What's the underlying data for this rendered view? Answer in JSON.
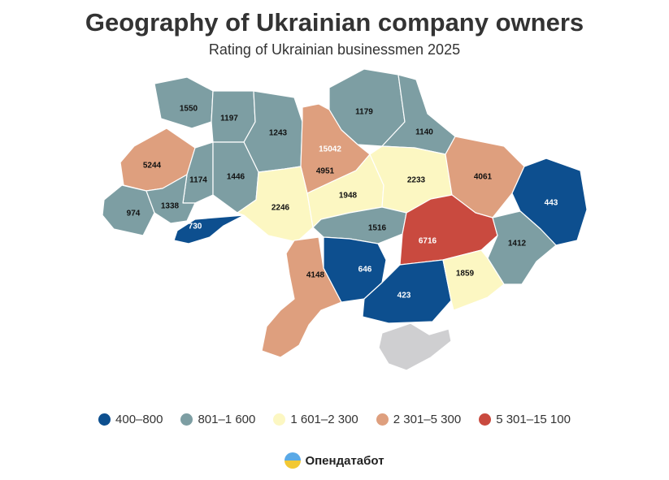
{
  "title": "Geography of Ukrainian company owners",
  "subtitle": "Rating of Ukrainian businessmen 2025",
  "chart_data": {
    "type": "choropleth",
    "regions": [
      {
        "name": "Volyn",
        "value": 1550,
        "color": "#7d9ea3"
      },
      {
        "name": "Rivne",
        "value": 1197,
        "color": "#7d9ea3"
      },
      {
        "name": "Zhytomyr",
        "value": 1243,
        "color": "#7d9ea3"
      },
      {
        "name": "Chernihiv",
        "value": 1179,
        "color": "#7d9ea3"
      },
      {
        "name": "Sumy",
        "value": 1140,
        "color": "#7d9ea3"
      },
      {
        "name": "Lviv",
        "value": 5244,
        "color": "#de9f7e"
      },
      {
        "name": "Ternopil",
        "value": 1174,
        "color": "#7d9ea3"
      },
      {
        "name": "Khmelnytskyi",
        "value": 1446,
        "color": "#7d9ea3"
      },
      {
        "name": "Kyiv city",
        "value": 15042,
        "color": "#c94a3f"
      },
      {
        "name": "Kyiv oblast",
        "value": 4951,
        "color": "#de9f7e"
      },
      {
        "name": "Zakarpattia",
        "value": 974,
        "color": "#7d9ea3"
      },
      {
        "name": "Ivano-Frankivsk",
        "value": 1338,
        "color": "#7d9ea3"
      },
      {
        "name": "Chernivtsi",
        "value": 730,
        "color": "#0d4f8f"
      },
      {
        "name": "Vinnytsia",
        "value": 2246,
        "color": "#fcf7c2"
      },
      {
        "name": "Cherkasy",
        "value": 1948,
        "color": "#fcf7c2"
      },
      {
        "name": "Poltava",
        "value": 2233,
        "color": "#fcf7c2"
      },
      {
        "name": "Kharkiv",
        "value": 4061,
        "color": "#de9f7e"
      },
      {
        "name": "Luhansk",
        "value": 443,
        "color": "#0d4f8f"
      },
      {
        "name": "Kirovohrad",
        "value": 1516,
        "color": "#7d9ea3"
      },
      {
        "name": "Dnipropetrovsk",
        "value": 6716,
        "color": "#c94a3f"
      },
      {
        "name": "Donetsk",
        "value": 1412,
        "color": "#7d9ea3"
      },
      {
        "name": "Odesa",
        "value": 4148,
        "color": "#de9f7e"
      },
      {
        "name": "Mykolaiv",
        "value": 646,
        "color": "#0d4f8f"
      },
      {
        "name": "Kherson",
        "value": 423,
        "color": "#0d4f8f"
      },
      {
        "name": "Zaporizhzhia",
        "value": 1859,
        "color": "#fcf7c2"
      },
      {
        "name": "Crimea",
        "value": null,
        "color": "#cfcfd1"
      }
    ],
    "legend": [
      {
        "label": "400–800",
        "color": "#0d4f8f"
      },
      {
        "label": "801–1 600",
        "color": "#7d9ea3"
      },
      {
        "label": "1 601–2 300",
        "color": "#fcf7c2"
      },
      {
        "label": "2 301–5 300",
        "color": "#de9f7e"
      },
      {
        "label": "5 301–15 100",
        "color": "#c94a3f"
      }
    ]
  },
  "logo": {
    "text": "Опендатабот"
  }
}
